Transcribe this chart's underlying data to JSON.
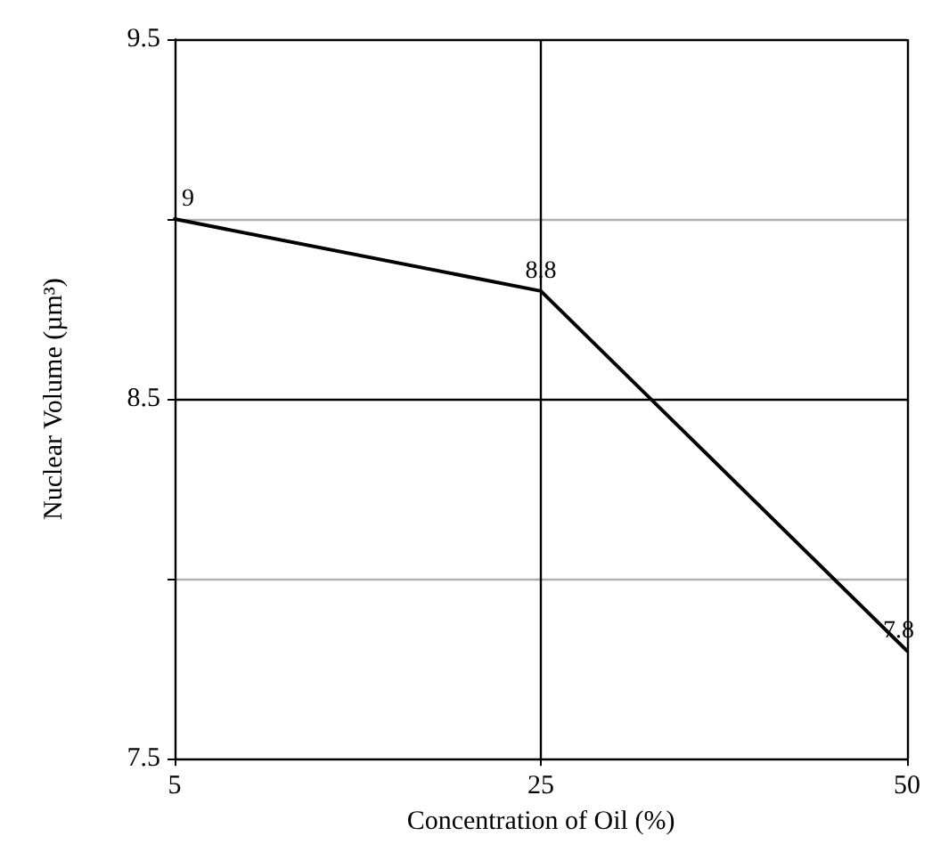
{
  "chart_data": {
    "type": "line",
    "xlabel": "Concentration of Oil (%)",
    "ylabel": "Nuclear Volume (µm³)",
    "categories": [
      "5",
      "25",
      "50"
    ],
    "series": [
      {
        "color": "#000000",
        "values": [
          9,
          8.8,
          7.8
        ]
      }
    ],
    "ylim": [
      7.5,
      9.5
    ],
    "yticks": [
      7.5,
      {
        "value": 8,
        "label": null
      },
      8.5,
      {
        "value": 9,
        "label": null
      },
      9.5
    ],
    "grid": true,
    "data_labels": true,
    "marker": "none",
    "line_style": "solid"
  }
}
